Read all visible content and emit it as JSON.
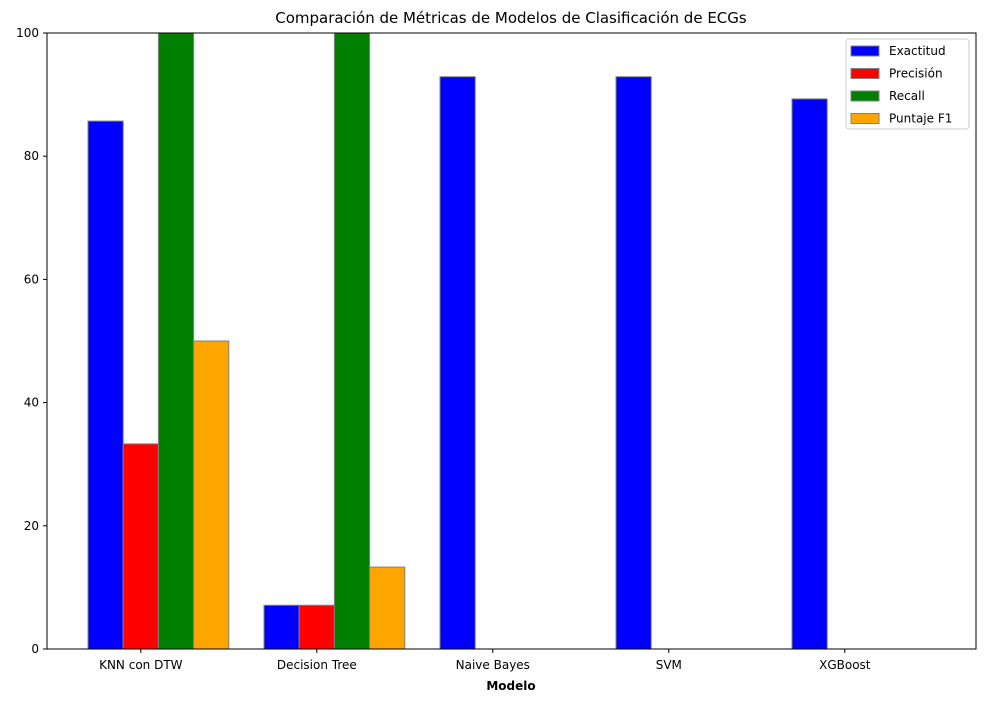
{
  "chart_data": {
    "type": "bar",
    "title": "Comparación de Métricas de Modelos de Clasificación de ECGs",
    "xlabel": "Modelo",
    "ylabel": "",
    "ylim": [
      0,
      100
    ],
    "yticks": [
      0,
      20,
      40,
      60,
      80,
      100
    ],
    "categories": [
      "KNN con DTW",
      "Decision Tree",
      "Naive Bayes",
      "SVM",
      "XGBoost"
    ],
    "series": [
      {
        "name": "Exactitud",
        "color": "#0000ff",
        "values": [
          85.7,
          7.1,
          92.9,
          92.9,
          89.3
        ]
      },
      {
        "name": "Precisión",
        "color": "#ff0000",
        "values": [
          33.3,
          7.1,
          0,
          0,
          0
        ]
      },
      {
        "name": "Recall",
        "color": "#008000",
        "values": [
          100,
          100,
          0,
          0,
          0
        ]
      },
      {
        "name": "Puntaje F1",
        "color": "#ffa500",
        "values": [
          50.0,
          13.3,
          0,
          0,
          0
        ]
      }
    ],
    "grid": false,
    "legend": "top-right",
    "bar_edge_color": "#808080"
  }
}
